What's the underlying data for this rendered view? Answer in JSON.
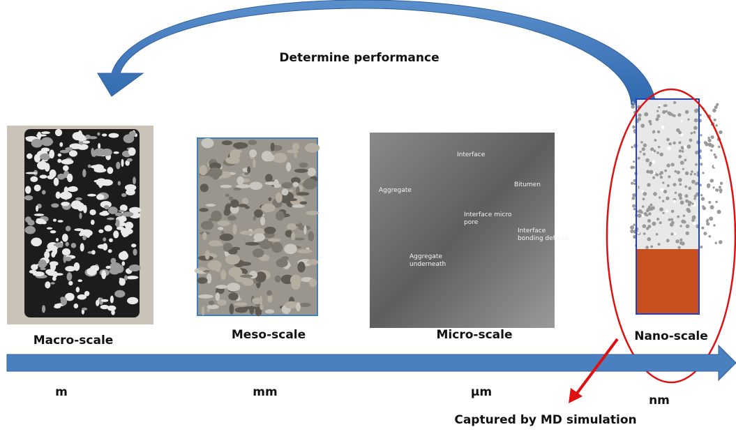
{
  "header": {
    "title": "Determine performance"
  },
  "scales": [
    {
      "label": "Macro-scale",
      "unit": "m"
    },
    {
      "label": "Meso-scale",
      "unit": "mm"
    },
    {
      "label": "Micro-scale",
      "unit": "μm"
    },
    {
      "label": "Nano-scale",
      "unit": "nm"
    }
  ],
  "micro_annotations": [
    {
      "lines": [
        "Interface"
      ]
    },
    {
      "lines": [
        "Bitumen"
      ]
    },
    {
      "lines": [
        "Aggregate"
      ]
    },
    {
      "lines": [
        "Interface micro",
        "pore"
      ]
    },
    {
      "lines": [
        "Interface",
        "bonding defects"
      ]
    },
    {
      "lines": [
        "Aggregate",
        "underneath"
      ]
    }
  ],
  "callout": "Captured by MD simulation"
}
